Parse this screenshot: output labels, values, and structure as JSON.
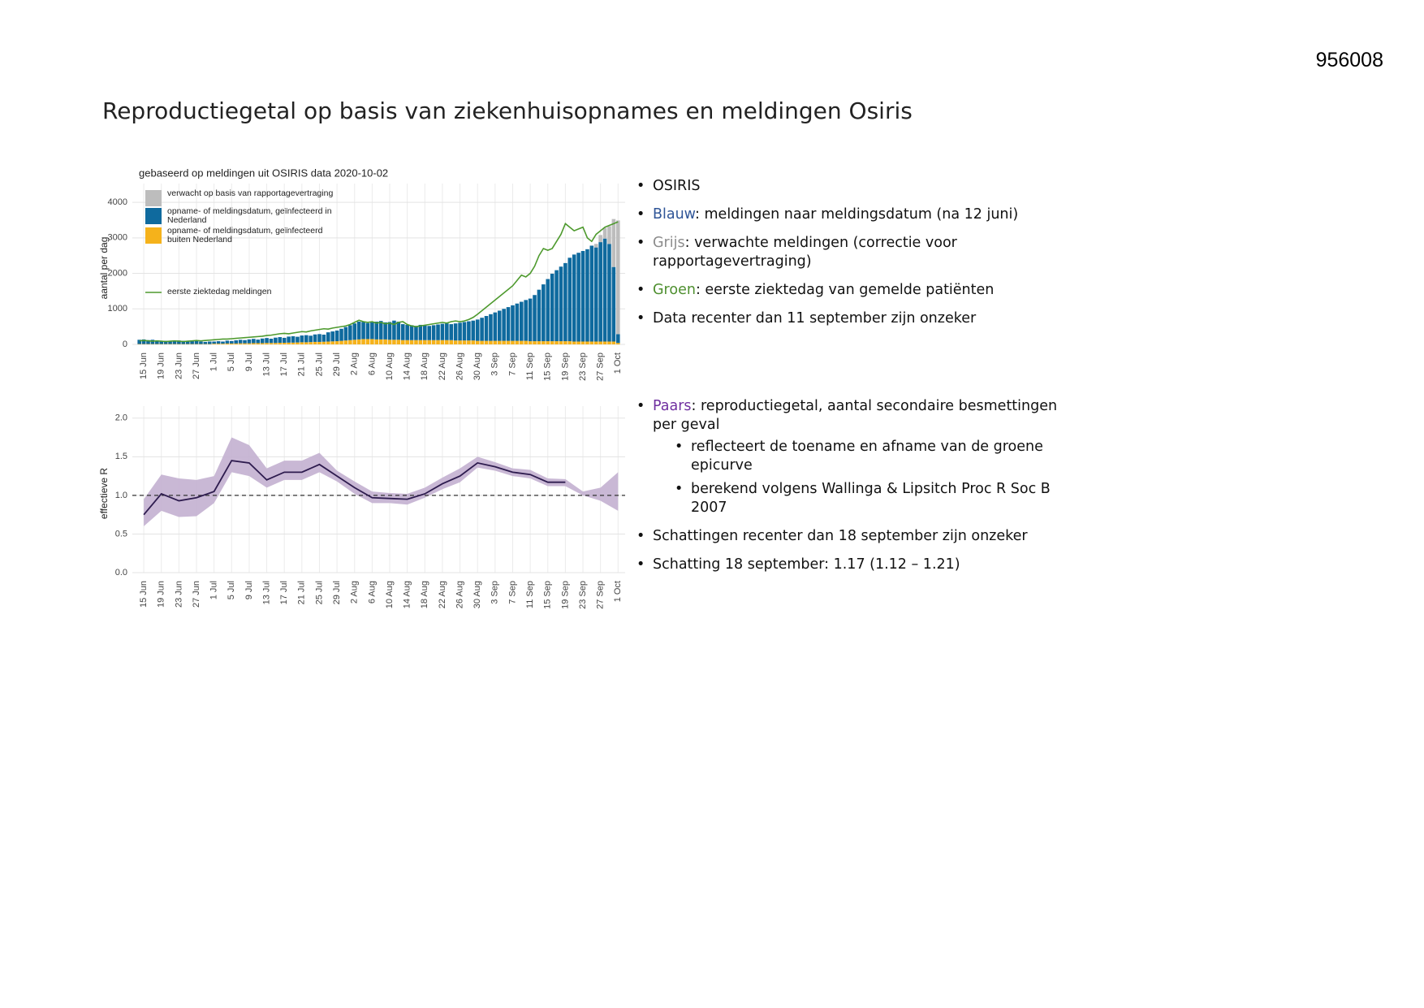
{
  "page_number": "956008",
  "title": "Reproductiegetal op basis van ziekenhuisopnames en meldingen Osiris",
  "chart_data": [
    {
      "type": "bar",
      "title": "gebaseerd op meldingen uit OSIRIS data 2020-10-02",
      "y_label": "aantal per dag",
      "stacked": true,
      "grid": true,
      "legend": "top-left",
      "categories": [
        null,
        "15 Jun",
        null,
        null,
        null,
        "19 Jun",
        null,
        null,
        null,
        "23 Jun",
        null,
        null,
        null,
        "27 Jun",
        null,
        null,
        null,
        "1 Jul",
        null,
        null,
        null,
        "5 Jul",
        null,
        null,
        null,
        "9 Jul",
        null,
        null,
        null,
        "13 Jul",
        null,
        null,
        null,
        "17 Jul",
        null,
        null,
        null,
        "21 Jul",
        null,
        null,
        null,
        "25 Jul",
        null,
        null,
        null,
        "29 Jul",
        null,
        null,
        null,
        "2 Aug",
        null,
        null,
        null,
        "6 Aug",
        null,
        null,
        null,
        "10 Aug",
        null,
        null,
        null,
        "14 Aug",
        null,
        null,
        null,
        "18 Aug",
        null,
        null,
        null,
        "22 Aug",
        null,
        null,
        null,
        "26 Aug",
        null,
        null,
        null,
        "30 Aug",
        null,
        null,
        null,
        "3 Sep",
        null,
        null,
        null,
        "7 Sep",
        null,
        null,
        null,
        "11 Sep",
        null,
        null,
        null,
        "15 Sep",
        null,
        null,
        null,
        "19 Sep",
        null,
        null,
        null,
        "23 Sep",
        null,
        null,
        null,
        "27 Sep",
        null,
        null,
        null,
        "1 Oct"
      ],
      "ylim": [
        0,
        4300
      ],
      "yticks": [
        0,
        1000,
        2000,
        3000,
        4000
      ],
      "series": [
        {
          "name": "verwacht op basis van rapportagevertraging",
          "color": "#bdbdbd",
          "values": [
            null,
            null,
            null,
            null,
            null,
            null,
            null,
            null,
            null,
            null,
            null,
            null,
            null,
            null,
            null,
            null,
            null,
            null,
            null,
            null,
            null,
            null,
            null,
            null,
            null,
            null,
            null,
            null,
            null,
            null,
            null,
            null,
            null,
            null,
            null,
            null,
            null,
            null,
            null,
            null,
            null,
            null,
            null,
            null,
            null,
            null,
            null,
            null,
            null,
            null,
            null,
            null,
            null,
            null,
            null,
            null,
            null,
            null,
            null,
            null,
            null,
            null,
            null,
            null,
            null,
            null,
            null,
            null,
            null,
            null,
            null,
            null,
            null,
            null,
            null,
            null,
            null,
            null,
            null,
            null,
            null,
            null,
            null,
            null,
            null,
            null,
            null,
            null,
            null,
            null,
            null,
            null,
            null,
            null,
            null,
            null,
            null,
            null,
            null,
            null,
            null,
            null,
            null,
            null,
            100,
            200,
            300,
            500,
            1350,
            3200
          ]
        },
        {
          "name": "opname- of meldingsdatum, geïnfecteerd in Nederland",
          "color": "#0f6a9e",
          "values": [
            120,
            130,
            110,
            120,
            90,
            80,
            90,
            70,
            80,
            100,
            90,
            70,
            80,
            90,
            70,
            60,
            70,
            60,
            70,
            60,
            80,
            70,
            90,
            100,
            90,
            110,
            120,
            100,
            130,
            140,
            120,
            150,
            160,
            140,
            170,
            180,
            160,
            190,
            200,
            180,
            210,
            220,
            200,
            260,
            280,
            300,
            340,
            380,
            420,
            460,
            500,
            480,
            450,
            470,
            500,
            520,
            480,
            500,
            540,
            510,
            450,
            430,
            420,
            400,
            430,
            410,
            400,
            420,
            440,
            460,
            470,
            450,
            480,
            500,
            520,
            540,
            560,
            600,
            650,
            700,
            750,
            800,
            850,
            900,
            950,
            1000,
            1050,
            1100,
            1150,
            1200,
            1300,
            1450,
            1600,
            1750,
            1900,
            2000,
            2100,
            2200,
            2350,
            2450,
            2500,
            2550,
            2600,
            2700,
            2650,
            2800,
            2900,
            2750,
            2100,
            250
          ]
        },
        {
          "name": "opname- of meldingsdatum, geïnfecteerd buiten Nederland",
          "color": "#f5b21b",
          "values": [
            10,
            10,
            10,
            10,
            10,
            10,
            10,
            10,
            10,
            10,
            10,
            10,
            10,
            10,
            10,
            10,
            10,
            20,
            20,
            20,
            25,
            25,
            25,
            30,
            30,
            30,
            35,
            35,
            35,
            40,
            40,
            40,
            45,
            45,
            50,
            50,
            55,
            60,
            60,
            65,
            70,
            70,
            75,
            80,
            85,
            90,
            100,
            110,
            120,
            130,
            140,
            150,
            150,
            150,
            140,
            140,
            140,
            130,
            130,
            130,
            120,
            120,
            120,
            120,
            120,
            120,
            120,
            120,
            120,
            120,
            120,
            120,
            110,
            110,
            110,
            110,
            110,
            100,
            100,
            100,
            100,
            100,
            100,
            100,
            100,
            100,
            100,
            100,
            100,
            90,
            90,
            90,
            90,
            90,
            90,
            90,
            90,
            90,
            90,
            80,
            80,
            80,
            80,
            80,
            80,
            80,
            80,
            80,
            80,
            40
          ]
        },
        {
          "name": "eerste ziektedag meldingen",
          "type": "line",
          "color": "#4e9a2e",
          "values": [
            100,
            110,
            100,
            90,
            100,
            90,
            80,
            90,
            100,
            90,
            80,
            90,
            100,
            110,
            100,
            110,
            120,
            130,
            140,
            150,
            150,
            160,
            170,
            180,
            190,
            200,
            210,
            220,
            230,
            250,
            260,
            280,
            300,
            310,
            300,
            320,
            340,
            360,
            350,
            380,
            400,
            420,
            440,
            430,
            460,
            480,
            500,
            520,
            560,
            620,
            680,
            640,
            620,
            640,
            600,
            620,
            580,
            600,
            560,
            620,
            640,
            560,
            520,
            500,
            520,
            540,
            560,
            580,
            600,
            620,
            600,
            640,
            660,
            640,
            660,
            700,
            760,
            850,
            950,
            1050,
            1150,
            1250,
            1350,
            1450,
            1550,
            1650,
            1800,
            1950,
            1900,
            2000,
            2200,
            2500,
            2700,
            2650,
            2700,
            2900,
            3100,
            3400,
            3300,
            3200,
            3250,
            3300,
            3000,
            2900,
            3100,
            3200,
            3300,
            3350,
            3400,
            3450
          ]
        }
      ]
    },
    {
      "type": "line",
      "y_label": "effectieve R",
      "grid": true,
      "reference_line": 1,
      "color": "#2d1b4e",
      "band_color": "#c3b0d0",
      "categories": [
        "15 Jun",
        "19 Jun",
        "23 Jun",
        "27 Jun",
        "1 Jul",
        "5 Jul",
        "9 Jul",
        "13 Jul",
        "17 Jul",
        "21 Jul",
        "25 Jul",
        "29 Jul",
        "2 Aug",
        "6 Aug",
        "10 Aug",
        "14 Aug",
        "18 Aug",
        "22 Aug",
        "26 Aug",
        "30 Aug",
        "3 Sep",
        "7 Sep",
        "11 Sep",
        "15 Sep",
        "19 Sep",
        "23 Sep",
        "27 Sep",
        "1 Oct"
      ],
      "ylim": [
        0,
        2.05
      ],
      "yticks": [
        {
          "value": 0,
          "label": "0.0"
        },
        0.5,
        {
          "value": 1,
          "label": "1.0"
        },
        1.5,
        {
          "value": 2,
          "label": "2.0"
        }
      ],
      "values": [
        0.75,
        1.02,
        0.93,
        0.97,
        1.05,
        1.45,
        1.42,
        1.2,
        1.3,
        1.3,
        1.4,
        1.25,
        1.1,
        0.97,
        0.96,
        0.95,
        1.02,
        1.15,
        1.25,
        1.42,
        1.37,
        1.3,
        1.27,
        1.17,
        1.17,
        null,
        null,
        null
      ],
      "lower": [
        0.6,
        0.8,
        0.72,
        0.73,
        0.9,
        1.3,
        1.25,
        1.1,
        1.2,
        1.2,
        1.3,
        1.18,
        1.02,
        0.9,
        0.9,
        0.88,
        0.97,
        1.08,
        1.17,
        1.36,
        1.32,
        1.25,
        1.22,
        1.12,
        1.12,
        1.0,
        0.93,
        0.8
      ],
      "upper": [
        0.95,
        1.27,
        1.22,
        1.2,
        1.25,
        1.75,
        1.65,
        1.35,
        1.45,
        1.45,
        1.55,
        1.32,
        1.18,
        1.05,
        1.03,
        1.02,
        1.1,
        1.23,
        1.35,
        1.5,
        1.43,
        1.35,
        1.33,
        1.22,
        1.21,
        1.05,
        1.1,
        1.3
      ]
    }
  ],
  "bullets": [
    {
      "text": "OSIRIS"
    },
    {
      "label": "Blauw",
      "color": "#2f5597",
      "text": ": meldingen naar meldingsdatum (na 12 juni)"
    },
    {
      "label": "Grijs",
      "color": "#8c8c8c",
      "text": ": verwachte meldingen (correctie voor rapportagevertraging)"
    },
    {
      "label": "Groen",
      "color": "#4e8f2f",
      "text": ": eerste ziektedag van gemelde patiënten"
    },
    {
      "text": "Data recenter dan 11 september zijn onzeker"
    }
  ],
  "notes": [
    {
      "label": "Paars",
      "color": "#7030a0",
      "text": ": reproductiegetal, aantal secondaire  besmettingen per geval",
      "sub": [
        "reflecteert de toename en afname van de groene epicurve",
        "berekend volgens Wallinga & Lipsitch Proc R Soc B 2007"
      ]
    },
    {
      "text": "Schattingen recenter dan 18 september zijn onzeker"
    },
    {
      "text": "Schatting 18 september: 1.17 (1.12 – 1.21)"
    }
  ]
}
